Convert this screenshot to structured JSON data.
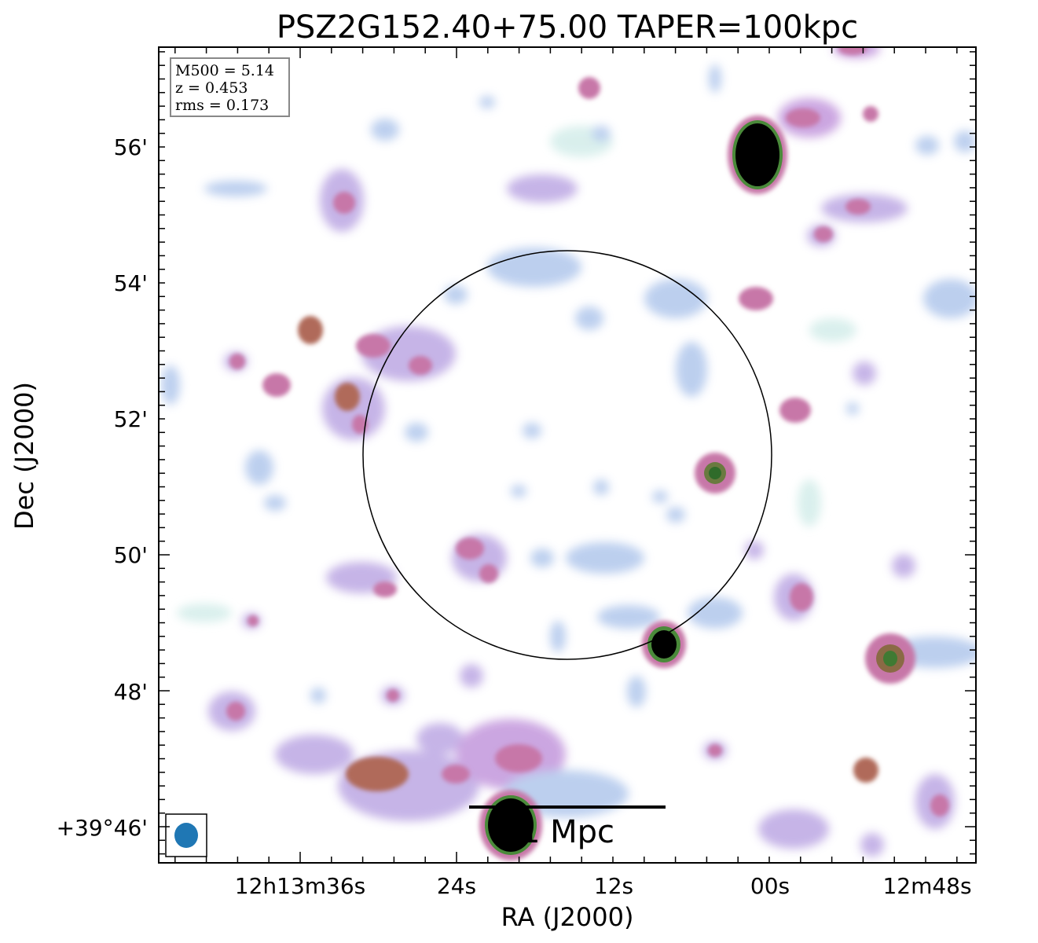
{
  "chart_data": {
    "type": "heatmap",
    "title": "PSZ2G152.40+75.00 TAPER=100kpc",
    "xlabel": "RA (J2000)",
    "ylabel": "Dec (J2000)",
    "x_ticks": [
      "12h13m36s",
      "24s",
      "12s",
      "00s",
      "12m48s"
    ],
    "y_ticks": [
      "+39°46'",
      "48'",
      "50'",
      "52'",
      "54'",
      "56'"
    ],
    "info_box": [
      "M500 = 5.14",
      "z = 0.453",
      "rms = 0.173"
    ],
    "scale_bar_label": "1 Mpc",
    "colormap": [
      "#ffffff",
      "#d8efec",
      "#b3c8ef",
      "#c9a2e0",
      "#c777a8",
      "#b06a5a",
      "#4a8a3a",
      "#000000"
    ],
    "beam_color": "#1f77b4",
    "sources": [
      {
        "ra": "12h13m00.8s",
        "dec": 55.9,
        "peak": "saturated",
        "note": "bright compact source"
      },
      {
        "ra": "12h13m22s",
        "dec": 46.0,
        "peak": "saturated",
        "note": "bright compact source near scale bar"
      },
      {
        "ra": "12h13m08s",
        "dec": 48.7,
        "peak": "saturated",
        "note": "compact source on circle edge"
      },
      {
        "ra": "12h13m05s",
        "dec": 51.2,
        "peak": "high"
      },
      {
        "ra": "12h12m51s",
        "dec": 48.5,
        "peak": "high"
      }
    ]
  }
}
